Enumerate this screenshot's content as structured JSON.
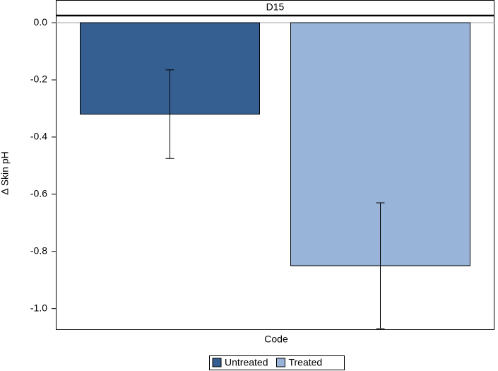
{
  "chart_data": {
    "type": "bar",
    "panel_title": "D15",
    "xlabel": "Code",
    "ylabel": "Δ Skin pH",
    "categories": [
      null
    ],
    "series": [
      {
        "name": "Untreated",
        "color": "#355f91",
        "values": [
          -0.32
        ],
        "errors": [
          0.155
        ]
      },
      {
        "name": "Treated",
        "color": "#98b4d9",
        "values": [
          -0.85
        ],
        "errors": [
          0.22
        ]
      }
    ],
    "ylim": [
      -1.075,
      0.025
    ],
    "yticks": [
      {
        "value": 0,
        "label": "0.0"
      },
      -0.2,
      -0.4,
      -0.6,
      -0.8,
      {
        "value": -1,
        "label": "-1.0"
      }
    ],
    "legend": "bottom"
  }
}
